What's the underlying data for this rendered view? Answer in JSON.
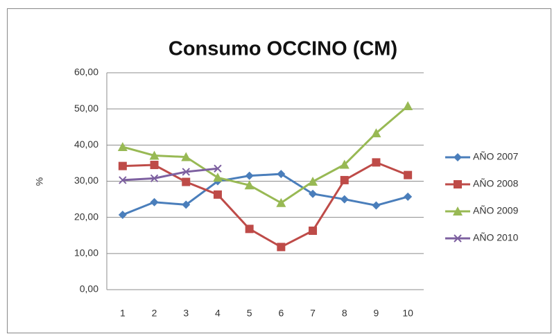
{
  "chart_data": {
    "type": "line",
    "title": "Consumo OCCINO (CM)",
    "y_label": "%",
    "categories": [
      "1",
      "2",
      "3",
      "4",
      "5",
      "6",
      "7",
      "8",
      "9",
      "10"
    ],
    "series": [
      {
        "name": "AÑO 2007",
        "color": "#4a7ebb",
        "marker": "diamond",
        "values": [
          20.7,
          24.2,
          23.5,
          30.0,
          31.5,
          32.0,
          26.5,
          25.0,
          23.3,
          25.7
        ]
      },
      {
        "name": "AÑO 2008",
        "color": "#be4b48",
        "marker": "square",
        "values": [
          34.2,
          34.5,
          29.8,
          26.3,
          16.8,
          11.8,
          16.3,
          30.3,
          35.2,
          31.7
        ]
      },
      {
        "name": "AÑO 2009",
        "color": "#98b954",
        "marker": "triangle",
        "values": [
          39.5,
          37.1,
          36.7,
          31.0,
          28.9,
          24.0,
          29.9,
          34.6,
          43.3,
          50.8
        ]
      },
      {
        "name": "AÑO 2010",
        "color": "#7d60a0",
        "marker": "x",
        "values": [
          30.3,
          30.8,
          32.6,
          33.5,
          null,
          null,
          null,
          null,
          null,
          null
        ]
      }
    ],
    "ylim": [
      0,
      60
    ],
    "yticks": [
      {
        "value": 0,
        "label": "0,00"
      },
      {
        "value": 10,
        "label": "10,00"
      },
      {
        "value": 20,
        "label": "20,00"
      },
      {
        "value": 30,
        "label": "30,00"
      },
      {
        "value": 40,
        "label": "40,00"
      },
      {
        "value": 50,
        "label": "50,00"
      },
      {
        "value": 60,
        "label": "60,00"
      }
    ],
    "grid": true,
    "legend": "right"
  }
}
